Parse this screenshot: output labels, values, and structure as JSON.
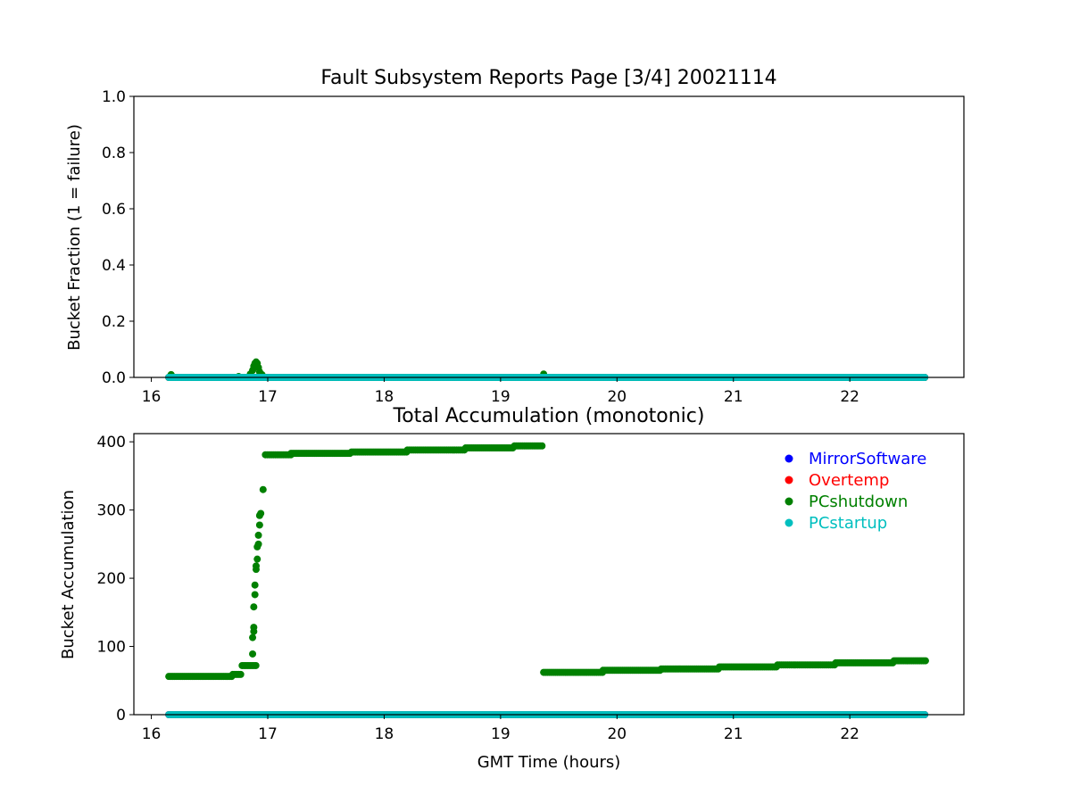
{
  "figure": {
    "title": "Fault Subsystem Reports Page [3/4] 20021114"
  },
  "chart_data": [
    {
      "type": "scatter",
      "title": "Fault Subsystem Reports Page [3/4] 20021114",
      "xlabel": "",
      "ylabel": "Bucket Fraction (1 = failure)",
      "xlim": [
        15.85,
        22.98
      ],
      "ylim": [
        0,
        1
      ],
      "xticks": [
        16,
        17,
        18,
        19,
        20,
        21,
        22
      ],
      "yticks": [
        0.0,
        0.2,
        0.4,
        0.6,
        0.8,
        1.0
      ],
      "ytick_labels": [
        "0.0",
        "0.2",
        "0.4",
        "0.6",
        "0.8",
        "1.0"
      ],
      "grid": false,
      "series": [
        {
          "name": "MirrorSoftware",
          "color": "#0000ff",
          "segments": [
            [
              16.15,
              22.65,
              0.0
            ]
          ],
          "points": []
        },
        {
          "name": "Overtemp",
          "color": "#ff0000",
          "segments": [
            [
              16.15,
              22.65,
              0.0
            ]
          ],
          "points": []
        },
        {
          "name": "PCshutdown",
          "color": "#008000",
          "segments": [
            [
              16.15,
              22.65,
              0.0
            ]
          ],
          "points": [
            [
              16.17,
              0.01
            ],
            [
              16.75,
              0.003
            ],
            [
              16.85,
              0.012
            ],
            [
              16.87,
              0.025
            ],
            [
              16.88,
              0.04
            ],
            [
              16.89,
              0.05
            ],
            [
              16.9,
              0.055
            ],
            [
              16.91,
              0.05
            ],
            [
              16.92,
              0.035
            ],
            [
              16.93,
              0.02
            ],
            [
              16.95,
              0.01
            ],
            [
              19.37,
              0.012
            ]
          ]
        },
        {
          "name": "PCstartup",
          "color": "#00bfbf",
          "segments": [
            [
              16.15,
              22.65,
              0.0
            ]
          ],
          "points": []
        }
      ]
    },
    {
      "type": "scatter",
      "title": "Total Accumulation (monotonic)",
      "xlabel": "GMT Time (hours)",
      "ylabel": "Bucket Accumulation",
      "xlim": [
        15.85,
        22.98
      ],
      "ylim": [
        0,
        412
      ],
      "xticks": [
        16,
        17,
        18,
        19,
        20,
        21,
        22
      ],
      "yticks": [
        0,
        100,
        200,
        300,
        400
      ],
      "ytick_labels": [
        "0",
        "100",
        "200",
        "300",
        "400"
      ],
      "grid": false,
      "legend": "top-right",
      "series": [
        {
          "name": "MirrorSoftware",
          "color": "#0000ff",
          "segments": [
            [
              16.15,
              22.65,
              0
            ]
          ],
          "points": []
        },
        {
          "name": "Overtemp",
          "color": "#ff0000",
          "segments": [
            [
              16.15,
              22.65,
              0
            ]
          ],
          "points": []
        },
        {
          "name": "PCshutdown",
          "color": "#008000",
          "segments": [
            [
              16.15,
              16.7,
              56
            ],
            [
              16.7,
              16.78,
              59
            ],
            [
              16.78,
              16.9,
              72
            ],
            [
              16.98,
              17.2,
              381
            ],
            [
              17.2,
              17.72,
              383
            ],
            [
              17.72,
              18.2,
              385
            ],
            [
              18.2,
              18.7,
              388
            ],
            [
              18.7,
              19.12,
              391
            ],
            [
              19.12,
              19.37,
              394
            ],
            [
              19.37,
              19.88,
              62
            ],
            [
              19.88,
              20.38,
              65
            ],
            [
              20.38,
              20.88,
              67
            ],
            [
              20.88,
              21.38,
              70
            ],
            [
              21.38,
              21.88,
              73
            ],
            [
              21.88,
              22.38,
              76
            ],
            [
              22.38,
              22.65,
              79
            ]
          ],
          "points": [
            [
              16.87,
              89
            ],
            [
              16.87,
              113
            ],
            [
              16.88,
              122
            ],
            [
              16.88,
              128
            ],
            [
              16.88,
              158
            ],
            [
              16.89,
              176
            ],
            [
              16.89,
              190
            ],
            [
              16.9,
              213
            ],
            [
              16.9,
              218
            ],
            [
              16.91,
              228
            ],
            [
              16.91,
              246
            ],
            [
              16.92,
              250
            ],
            [
              16.92,
              263
            ],
            [
              16.93,
              278
            ],
            [
              16.93,
              292
            ],
            [
              16.94,
              295
            ],
            [
              16.96,
              330
            ]
          ]
        },
        {
          "name": "PCstartup",
          "color": "#00bfbf",
          "segments": [
            [
              16.15,
              22.65,
              0
            ]
          ],
          "points": []
        }
      ]
    }
  ]
}
